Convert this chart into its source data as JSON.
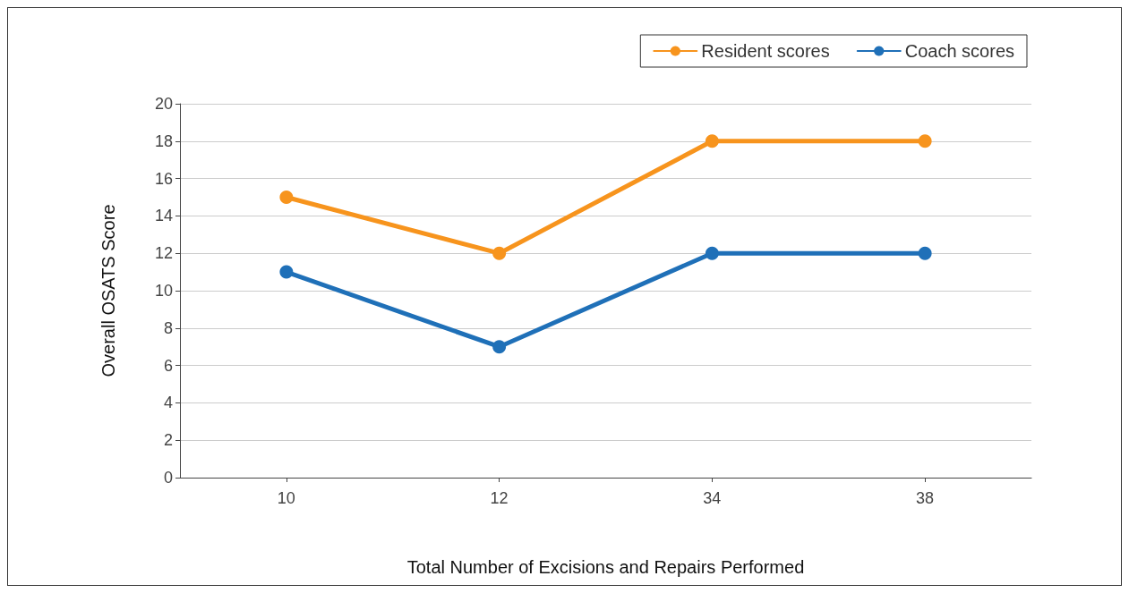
{
  "chart_data": {
    "type": "line",
    "xlabel": "Total Number of Excisions and Repairs Performed",
    "ylabel": "Overall OSATS Score",
    "categories": [
      "10",
      "12",
      "34",
      "38"
    ],
    "series": [
      {
        "name": "Resident scores",
        "color": "#f7941d",
        "values": [
          15,
          12,
          18,
          18
        ]
      },
      {
        "name": "Coach scores",
        "color": "#1f70b8",
        "values": [
          11,
          7,
          12,
          12
        ]
      }
    ],
    "ylim": [
      0,
      20
    ],
    "yticks": [
      0,
      2,
      4,
      6,
      8,
      10,
      12,
      14,
      16,
      18,
      20
    ],
    "grid": "y",
    "legend": "top right",
    "marker": "circle",
    "line_style": "solid"
  }
}
